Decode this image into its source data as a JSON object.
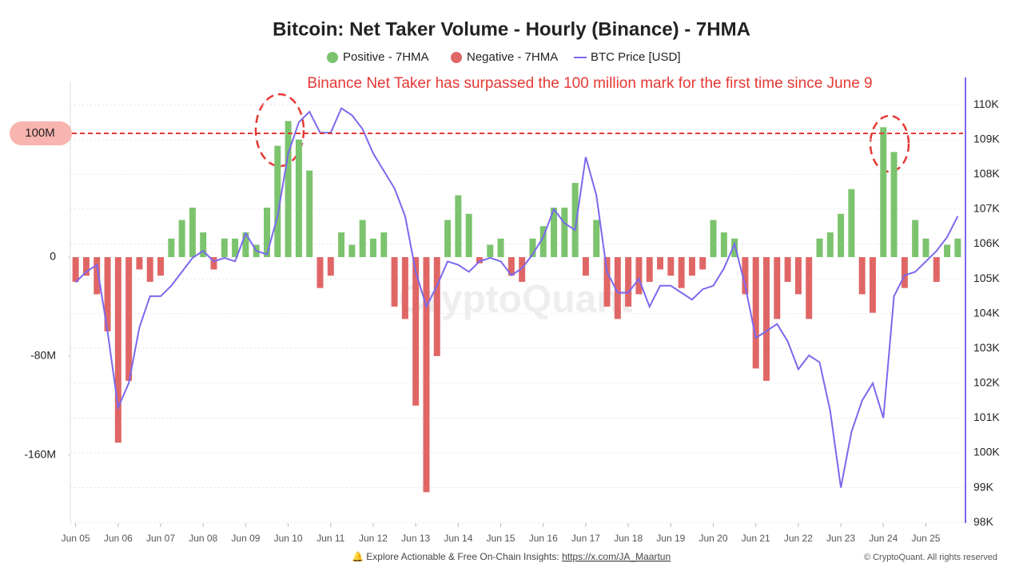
{
  "chart_data": {
    "type": "bar",
    "title": "Bitcoin: Net Taker Volume - Hourly (Binance) - 7HMA",
    "annotation": "Binance Net Taker has surpassed the 100 million mark for the first time since June 9",
    "reference_line": {
      "value": 100000000,
      "label": "100M"
    },
    "watermark": "CryptoQuant",
    "footer": "Explore Actionable & Free On-Chain Insights: ",
    "footer_link": "https://x.com/JA_Maartun",
    "copyright": "© CryptoQuant. All rights reserved",
    "categories": [
      "Jun 05",
      null,
      null,
      null,
      "Jun 06",
      null,
      null,
      null,
      "Jun 07",
      null,
      null,
      null,
      "Jun 08",
      null,
      null,
      null,
      "Jun 09",
      null,
      null,
      null,
      "Jun 10",
      null,
      null,
      null,
      "Jun 11",
      null,
      null,
      null,
      "Jun 12",
      null,
      null,
      null,
      "Jun 13",
      null,
      null,
      null,
      "Jun 14",
      null,
      null,
      null,
      "Jun 15",
      null,
      null,
      null,
      "Jun 16",
      null,
      null,
      null,
      "Jun 17",
      null,
      null,
      null,
      "Jun 18",
      null,
      null,
      null,
      "Jun 19",
      null,
      null,
      null,
      "Jun 20",
      null,
      null,
      null,
      "Jun 21",
      null,
      null,
      null,
      "Jun 22",
      null,
      null,
      null,
      "Jun 23",
      null,
      null,
      null,
      "Jun 24",
      null,
      null,
      null,
      "Jun 25",
      null,
      null,
      null
    ],
    "series": [
      {
        "name": "Positive - 7HMA",
        "color": "#7cc36e",
        "values": [
          null,
          null,
          null,
          null,
          null,
          null,
          null,
          null,
          null,
          15000000,
          30000000,
          40000000,
          20000000,
          null,
          15000000,
          15000000,
          20000000,
          10000000,
          40000000,
          90000000,
          110000000,
          95000000,
          70000000,
          null,
          null,
          20000000,
          10000000,
          30000000,
          15000000,
          20000000,
          null,
          null,
          null,
          null,
          null,
          30000000,
          50000000,
          35000000,
          null,
          10000000,
          15000000,
          null,
          null,
          15000000,
          25000000,
          40000000,
          40000000,
          60000000,
          null,
          30000000,
          null,
          null,
          null,
          null,
          null,
          null,
          null,
          null,
          null,
          null,
          30000000,
          20000000,
          15000000,
          null,
          null,
          null,
          null,
          null,
          null,
          null,
          15000000,
          20000000,
          35000000,
          55000000,
          null,
          null,
          105000000,
          85000000,
          null,
          30000000,
          15000000,
          null,
          10000000,
          15000000
        ]
      },
      {
        "name": "Negative - 7HMA",
        "color": "#e06666",
        "values": [
          -20000000,
          -15000000,
          -30000000,
          -60000000,
          -150000000,
          -100000000,
          -10000000,
          -20000000,
          -15000000,
          null,
          null,
          null,
          null,
          -10000000,
          null,
          null,
          null,
          null,
          null,
          null,
          null,
          null,
          null,
          -25000000,
          -15000000,
          null,
          null,
          null,
          null,
          null,
          -40000000,
          -50000000,
          -120000000,
          -190000000,
          -80000000,
          null,
          null,
          null,
          -5000000,
          null,
          null,
          -15000000,
          -20000000,
          null,
          null,
          null,
          null,
          null,
          -15000000,
          null,
          -40000000,
          -50000000,
          -40000000,
          -30000000,
          -20000000,
          -10000000,
          -15000000,
          -25000000,
          -15000000,
          -10000000,
          null,
          null,
          null,
          -30000000,
          -90000000,
          -100000000,
          -50000000,
          -20000000,
          -30000000,
          -50000000,
          null,
          null,
          null,
          null,
          -30000000,
          -45000000,
          null,
          null,
          -25000000,
          null,
          null,
          -20000000,
          null,
          null
        ]
      },
      {
        "name": "BTC Price [USD]",
        "color": "#7b68ee",
        "axis": "y2",
        "values": [
          104900,
          105200,
          105400,
          103500,
          101300,
          102000,
          103600,
          104500,
          104500,
          104800,
          105200,
          105600,
          105800,
          105500,
          105600,
          105500,
          106300,
          105800,
          105700,
          106800,
          108600,
          109500,
          109800,
          109200,
          109200,
          109900,
          109700,
          109300,
          108600,
          108100,
          107600,
          106800,
          105200,
          104200,
          104800,
          105500,
          105400,
          105200,
          105500,
          105600,
          105500,
          105100,
          105300,
          105700,
          106200,
          107000,
          106600,
          106400,
          108500,
          107400,
          105200,
          104600,
          104600,
          105000,
          104200,
          104800,
          104800,
          104600,
          104400,
          104700,
          104800,
          105300,
          106000,
          104800,
          103300,
          103500,
          103700,
          103200,
          102400,
          102800,
          102600,
          101200,
          99000,
          100600,
          101500,
          102000,
          101000,
          104500,
          105100,
          105200,
          105500,
          105800,
          106200,
          106800
        ]
      }
    ],
    "ylim": [
      -215000000,
      142000000
    ],
    "yticks": [
      {
        "value": -160000000,
        "label": "-160M"
      },
      {
        "value": -80000000,
        "label": "-80M"
      },
      0
    ],
    "y2lim": [
      97980,
      110670
    ],
    "y2ticks": [
      {
        "value": 98000,
        "label": "98K"
      },
      {
        "value": 99000,
        "label": "99K"
      },
      {
        "value": 100000,
        "label": "100K"
      },
      {
        "value": 101000,
        "label": "101K"
      },
      {
        "value": 102000,
        "label": "102K"
      },
      {
        "value": 103000,
        "label": "103K"
      },
      {
        "value": 104000,
        "label": "104K"
      },
      {
        "value": 105000,
        "label": "105K"
      },
      {
        "value": 106000,
        "label": "106K"
      },
      {
        "value": 107000,
        "label": "107K"
      },
      {
        "value": 108000,
        "label": "108K"
      },
      {
        "value": 109000,
        "label": "109K"
      },
      {
        "value": 110000,
        "label": "110K"
      }
    ],
    "grid": true
  }
}
